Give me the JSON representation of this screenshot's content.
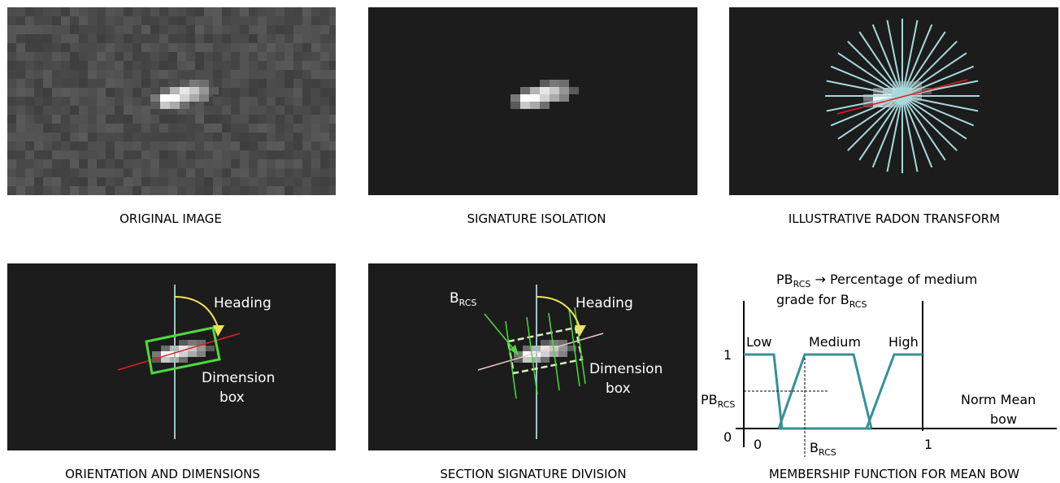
{
  "panels": [
    {
      "caption": "ORIGINAL IMAGE"
    },
    {
      "caption": "SIGNATURE ISOLATION"
    },
    {
      "caption": "ILLUSTRATIVE RADON TRANSFORM"
    },
    {
      "caption": "ORIENTATION AND DIMENSIONS",
      "heading": "Heading",
      "box_label": [
        "Dimension",
        "box"
      ]
    },
    {
      "caption": "SECTION SIGNATURE DIVISION",
      "heading": "Heading",
      "box_label": [
        "Dimension",
        "box"
      ],
      "section_label": {
        "base": "B",
        "sub": "RCS"
      }
    },
    {
      "caption": "MEMBERSHIP FUNCTION FOR MEAN BOW"
    }
  ],
  "membership": {
    "note_line1": {
      "base": "PB",
      "sub": "RCS",
      "text": " → Percentage  of medium"
    },
    "note_line2": {
      "text": "grade for B",
      "sub": "RCS"
    },
    "sets": [
      "Low",
      "Medium",
      "High"
    ],
    "y_labels": [
      "1",
      "0"
    ],
    "x_labels": [
      "0",
      "1"
    ],
    "pb_label": {
      "base": "PB",
      "sub": "RCS"
    },
    "b_label": {
      "base": "B",
      "sub": "RCS"
    },
    "axis_label": [
      "Norm Mean",
      "bow"
    ]
  }
}
